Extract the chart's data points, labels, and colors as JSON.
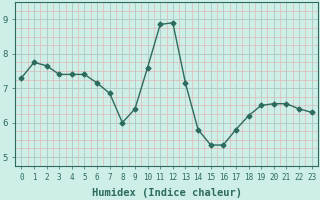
{
  "x": [
    0,
    1,
    2,
    3,
    4,
    5,
    6,
    7,
    8,
    9,
    10,
    11,
    12,
    13,
    14,
    15,
    16,
    17,
    18,
    19,
    20,
    21,
    22,
    23
  ],
  "y": [
    7.3,
    7.75,
    7.65,
    7.4,
    7.4,
    7.4,
    7.15,
    6.85,
    6.0,
    6.4,
    7.6,
    8.85,
    8.9,
    7.15,
    5.8,
    5.35,
    5.35,
    5.8,
    6.2,
    6.5,
    6.55,
    6.55,
    6.4,
    6.3
  ],
  "line_color": "#2d6b5e",
  "marker": "D",
  "marker_size": 2.5,
  "bg_color": "#ceeee8",
  "grid_color_major": "#b0ccc8",
  "grid_color_minor": "#e0b8b8",
  "xlabel": "Humidex (Indice chaleur)",
  "xlabel_fontsize": 7.5,
  "ylabel_ticks": [
    5,
    6,
    7,
    8,
    9
  ],
  "xlim": [
    -0.5,
    23.5
  ],
  "ylim": [
    4.75,
    9.5
  ],
  "xtick_fontsize": 5.5,
  "ytick_fontsize": 6.5,
  "line_width": 1.0
}
